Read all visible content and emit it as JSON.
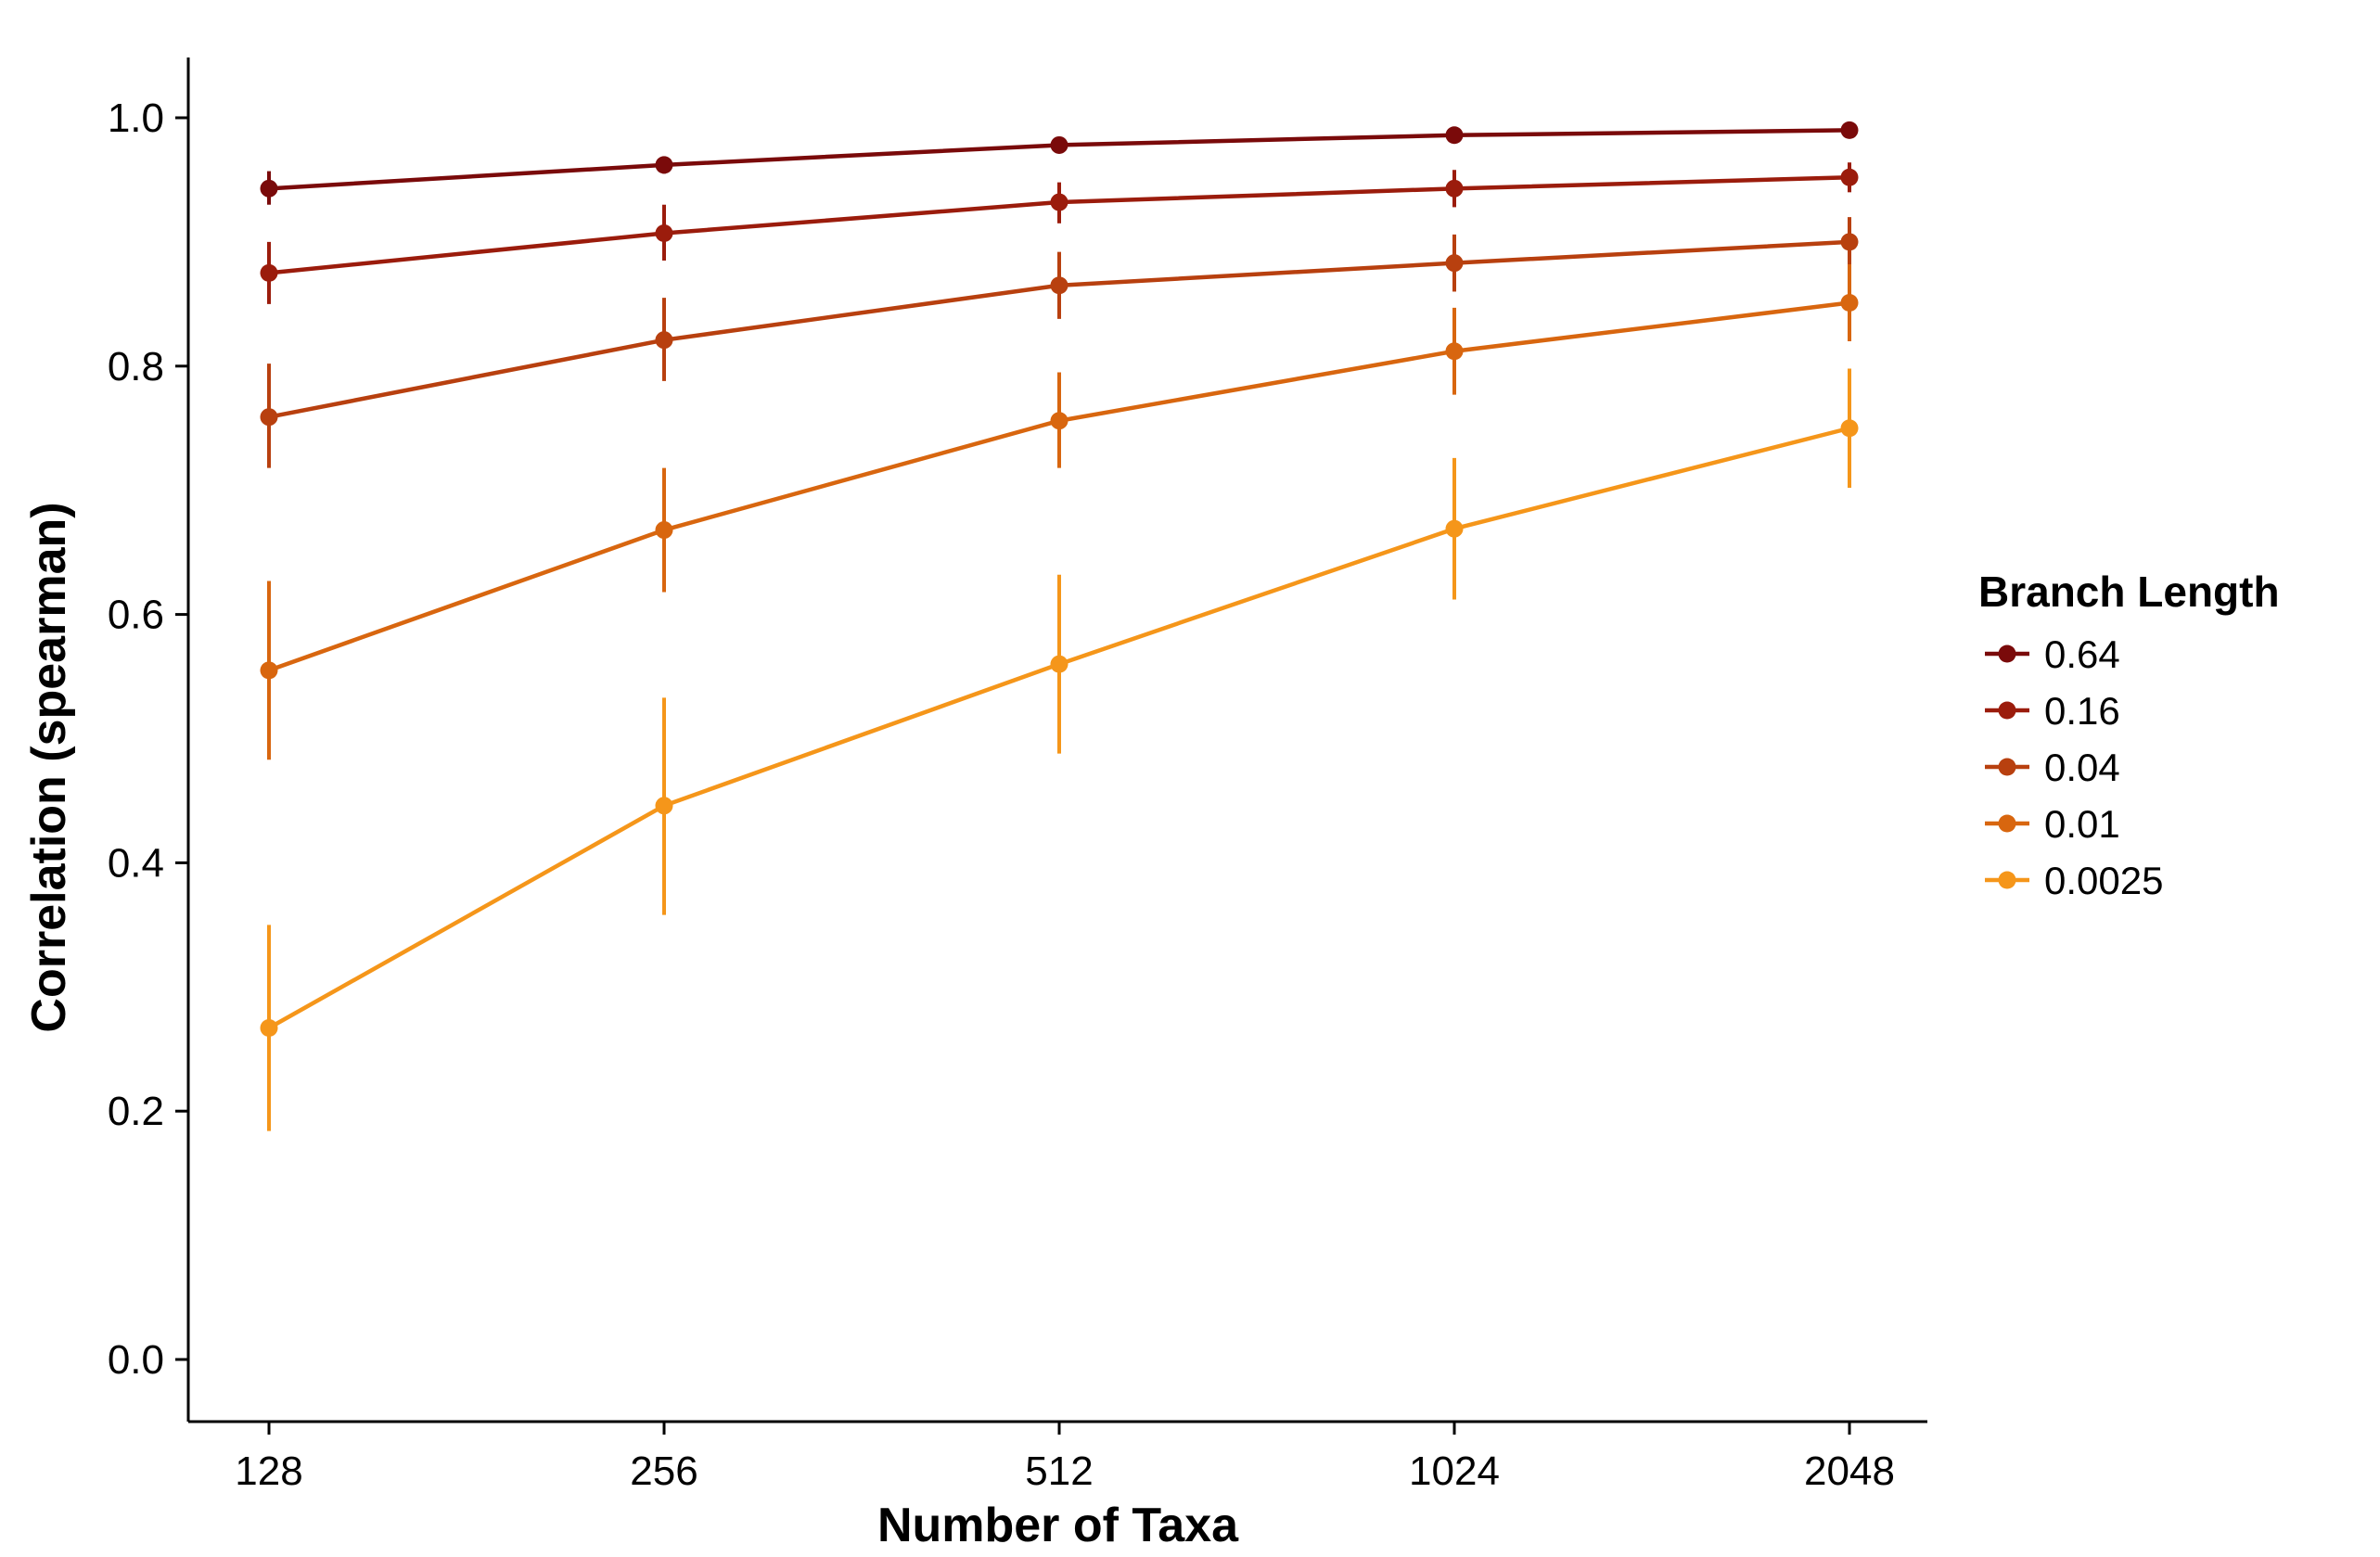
{
  "chart_data": {
    "type": "line",
    "xlabel": "Number of Taxa",
    "ylabel": "Correlation (spearman)",
    "categories": [
      "128",
      "256",
      "512",
      "1024",
      "2048"
    ],
    "ylim": [
      -0.05,
      1.05
    ],
    "yticks": [
      0.0,
      0.2,
      0.4,
      0.6,
      0.8,
      1.0
    ],
    "ytick_labels": [
      "0.0",
      "0.2",
      "0.4",
      "0.6",
      "0.8",
      "1.0"
    ],
    "grid": false,
    "legend": {
      "title": "Branch Length",
      "placement": "right"
    },
    "series": [
      {
        "name": "0.64",
        "color": "#7a0a0a",
        "values": [
          0.943,
          0.962,
          0.978,
          0.986,
          0.99
        ],
        "err_low": [
          0.93,
          0.955,
          0.974,
          0.983,
          0.987
        ],
        "err_high": [
          0.957,
          0.969,
          0.982,
          0.989,
          0.993
        ]
      },
      {
        "name": "0.16",
        "color": "#9b1c0c",
        "values": [
          0.875,
          0.907,
          0.932,
          0.943,
          0.952
        ],
        "err_low": [
          0.85,
          0.885,
          0.915,
          0.928,
          0.94
        ],
        "err_high": [
          0.9,
          0.93,
          0.948,
          0.958,
          0.964
        ]
      },
      {
        "name": "0.04",
        "color": "#b8400f",
        "values": [
          0.759,
          0.821,
          0.865,
          0.883,
          0.9
        ],
        "err_low": [
          0.718,
          0.788,
          0.838,
          0.86,
          0.88
        ],
        "err_high": [
          0.802,
          0.855,
          0.892,
          0.906,
          0.92
        ]
      },
      {
        "name": "0.01",
        "color": "#d8660f",
        "values": [
          0.555,
          0.668,
          0.756,
          0.812,
          0.851
        ],
        "err_low": [
          0.483,
          0.618,
          0.718,
          0.777,
          0.82
        ],
        "err_high": [
          0.627,
          0.718,
          0.795,
          0.847,
          0.882
        ]
      },
      {
        "name": "0.0025",
        "color": "#f5961a",
        "values": [
          0.267,
          0.446,
          0.56,
          0.669,
          0.75
        ],
        "err_low": [
          0.184,
          0.358,
          0.488,
          0.612,
          0.702
        ],
        "err_high": [
          0.35,
          0.533,
          0.632,
          0.726,
          0.798
        ]
      }
    ]
  }
}
